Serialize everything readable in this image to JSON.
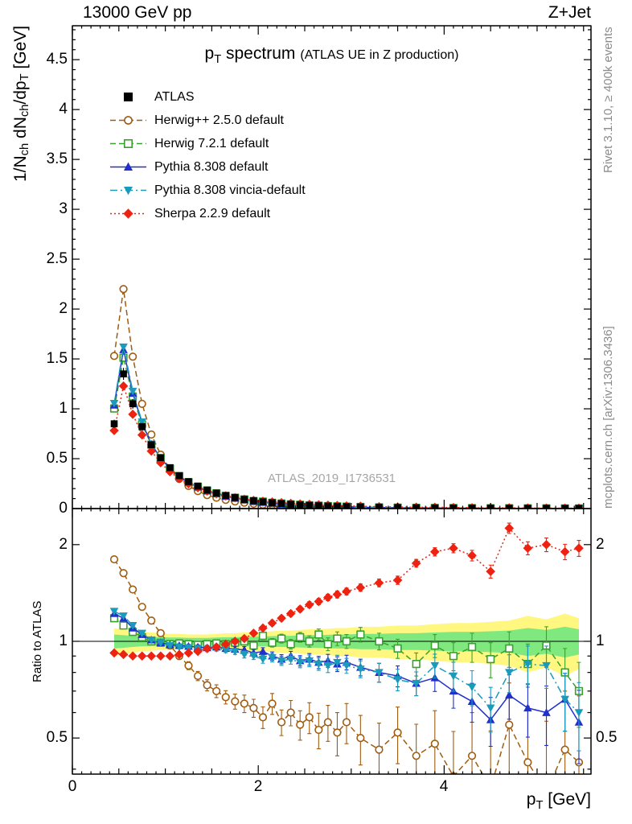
{
  "header": {
    "left": "13000 GeV pp",
    "right": "Z+Jet"
  },
  "title": {
    "main_parts": [
      [
        "t",
        "p"
      ],
      [
        "s",
        "T"
      ],
      [
        "t",
        " spectrum"
      ]
    ],
    "sub": "(ATLAS UE in Z production)"
  },
  "watermark": "ATLAS_2019_I1736531",
  "side_labels": {
    "top_right": "Rivet 3.1.10, ≥ 400k events",
    "bottom_right": "mcplots.cern.ch [arXiv:1306.3436]"
  },
  "axes": {
    "main_y_label_parts": [
      [
        "t",
        "1/N"
      ],
      [
        "s",
        "ch"
      ],
      [
        "t",
        " dN"
      ],
      [
        "s",
        "ch"
      ],
      [
        "t",
        "/dp"
      ],
      [
        "s",
        "T"
      ],
      [
        "t",
        " [GeV]"
      ]
    ],
    "ratio_y_label": "Ratio to ATLAS",
    "x_label_parts": [
      [
        "t",
        "p"
      ],
      [
        "s",
        "T"
      ],
      [
        "t",
        " [GeV]"
      ]
    ],
    "main_y_ticks": [
      0,
      0.5,
      1,
      1.5,
      2,
      2.5,
      3,
      3.5,
      4,
      4.5
    ],
    "ratio_y_ticks": [
      0.5,
      1,
      2
    ],
    "x_ticks": [
      0,
      2,
      4
    ]
  },
  "chart_data": {
    "type": "line",
    "title": "pT spectrum (ATLAS UE in Z production)",
    "xlabel": "pT [GeV]",
    "ylabel": "1/Nch dNch/dpT [GeV]",
    "ratio_label": "Ratio to ATLAS",
    "xlim": [
      0,
      5.58
    ],
    "main_ylim": [
      0,
      4.84
    ],
    "ratio_ylim": [
      0.386,
      2.59
    ],
    "x": [
      0.45,
      0.55,
      0.65,
      0.75,
      0.85,
      0.95,
      1.05,
      1.15,
      1.25,
      1.35,
      1.45,
      1.55,
      1.65,
      1.75,
      1.85,
      1.95,
      2.05,
      2.15,
      2.25,
      2.35,
      2.45,
      2.55,
      2.65,
      2.75,
      2.85,
      2.95,
      3.1,
      3.3,
      3.5,
      3.7,
      3.9,
      4.1,
      4.3,
      4.5,
      4.7,
      4.9,
      5.1,
      5.3,
      5.45
    ],
    "atlas": {
      "name": "ATLAS",
      "color": "#000000",
      "marker": "square-filled",
      "values": [
        0.85,
        1.35,
        1.05,
        0.82,
        0.64,
        0.51,
        0.41,
        0.33,
        0.27,
        0.225,
        0.185,
        0.155,
        0.13,
        0.11,
        0.092,
        0.078,
        0.067,
        0.058,
        0.05,
        0.043,
        0.0375,
        0.0325,
        0.0285,
        0.025,
        0.022,
        0.019,
        0.016,
        0.0125,
        0.0099,
        0.008,
        0.0066,
        0.0054,
        0.0045,
        0.0038,
        0.0032,
        0.0027,
        0.0023,
        0.002,
        0.0018
      ]
    },
    "series": [
      {
        "name": "Herwig++ 2.5.0 default",
        "color": "#a05c10",
        "line": "dash",
        "marker": "circle-open",
        "err_scale": 1.6,
        "ratio": [
          1.8,
          1.63,
          1.45,
          1.28,
          1.16,
          1.06,
          0.97,
          0.9,
          0.84,
          0.78,
          0.73,
          0.7,
          0.67,
          0.65,
          0.64,
          0.62,
          0.58,
          0.64,
          0.56,
          0.6,
          0.55,
          0.58,
          0.53,
          0.56,
          0.52,
          0.56,
          0.5,
          0.46,
          0.52,
          0.44,
          0.48,
          0.38,
          0.44,
          0.35,
          0.55,
          0.42,
          0.34,
          0.46,
          0.42
        ]
      },
      {
        "name": "Herwig 7.2.1 default",
        "color": "#3aa12e",
        "line": "dash",
        "marker": "square-open",
        "err_scale": 1.0,
        "ratio": [
          1.18,
          1.12,
          1.07,
          1.03,
          1.0,
          0.99,
          0.98,
          0.985,
          0.98,
          0.975,
          0.98,
          0.985,
          0.98,
          0.99,
          1.0,
          0.97,
          1.04,
          0.99,
          1.02,
          0.98,
          1.03,
          1.0,
          1.05,
          0.98,
          1.02,
          1.0,
          1.05,
          1.0,
          0.95,
          0.85,
          0.97,
          0.9,
          0.96,
          0.88,
          0.95,
          0.85,
          0.97,
          0.8,
          0.7
        ]
      },
      {
        "name": "Pythia 8.308 default",
        "color": "#2030cc",
        "line": "solid",
        "marker": "triangle-up",
        "err_scale": 0.9,
        "ratio": [
          1.22,
          1.18,
          1.1,
          1.05,
          1.01,
          0.99,
          0.975,
          0.97,
          0.965,
          0.96,
          0.955,
          0.96,
          0.95,
          0.945,
          0.94,
          0.92,
          0.93,
          0.9,
          0.88,
          0.9,
          0.87,
          0.88,
          0.86,
          0.87,
          0.85,
          0.86,
          0.83,
          0.8,
          0.78,
          0.74,
          0.77,
          0.7,
          0.65,
          0.57,
          0.68,
          0.62,
          0.6,
          0.66,
          0.56
        ]
      },
      {
        "name": "Pythia 8.308 vincia-default",
        "color": "#1b9bbb",
        "line": "dashdot",
        "marker": "triangle-down",
        "err_scale": 0.9,
        "ratio": [
          1.24,
          1.2,
          1.12,
          1.06,
          1.01,
          0.99,
          0.97,
          0.96,
          0.955,
          0.95,
          0.945,
          0.95,
          0.94,
          0.93,
          0.91,
          0.9,
          0.88,
          0.89,
          0.87,
          0.88,
          0.86,
          0.87,
          0.85,
          0.84,
          0.86,
          0.84,
          0.82,
          0.8,
          0.76,
          0.74,
          0.84,
          0.78,
          0.72,
          0.62,
          0.8,
          0.85,
          0.84,
          0.66,
          0.6
        ]
      },
      {
        "name": "Sherpa 2.2.9 default",
        "color": "#ee2211",
        "line": "dot",
        "marker": "diamond",
        "err_scale": 0.7,
        "ratio": [
          0.92,
          0.91,
          0.9,
          0.9,
          0.9,
          0.9,
          0.9,
          0.91,
          0.92,
          0.93,
          0.95,
          0.96,
          0.98,
          1.0,
          1.02,
          1.06,
          1.1,
          1.14,
          1.18,
          1.22,
          1.26,
          1.3,
          1.33,
          1.37,
          1.4,
          1.43,
          1.47,
          1.52,
          1.55,
          1.75,
          1.9,
          1.95,
          1.85,
          1.65,
          2.25,
          1.95,
          2.0,
          1.9,
          1.95
        ]
      }
    ],
    "bands": {
      "yellow_color": "#fff780",
      "green_color": "#7fe87f",
      "yellow_half": [
        0.1,
        0.09,
        0.08,
        0.07,
        0.065,
        0.06,
        0.055,
        0.055,
        0.05,
        0.05,
        0.05,
        0.055,
        0.06,
        0.06,
        0.065,
        0.07,
        0.07,
        0.075,
        0.08,
        0.08,
        0.085,
        0.09,
        0.09,
        0.095,
        0.1,
        0.1,
        0.11,
        0.11,
        0.12,
        0.12,
        0.13,
        0.14,
        0.14,
        0.15,
        0.16,
        0.2,
        0.17,
        0.22,
        0.18
      ],
      "green_half": [
        0.05,
        0.045,
        0.04,
        0.035,
        0.033,
        0.03,
        0.028,
        0.028,
        0.025,
        0.025,
        0.025,
        0.028,
        0.03,
        0.03,
        0.033,
        0.035,
        0.035,
        0.038,
        0.04,
        0.04,
        0.043,
        0.045,
        0.045,
        0.048,
        0.05,
        0.05,
        0.055,
        0.055,
        0.06,
        0.06,
        0.065,
        0.07,
        0.07,
        0.075,
        0.08,
        0.1,
        0.085,
        0.11,
        0.09
      ]
    },
    "err_profile": [
      0.01,
      0.01,
      0.01,
      0.01,
      0.01,
      0.012,
      0.012,
      0.014,
      0.015,
      0.016,
      0.018,
      0.02,
      0.02,
      0.022,
      0.025,
      0.025,
      0.028,
      0.03,
      0.032,
      0.034,
      0.036,
      0.04,
      0.042,
      0.045,
      0.05,
      0.05,
      0.055,
      0.06,
      0.065,
      0.07,
      0.08,
      0.09,
      0.1,
      0.11,
      0.12,
      0.13,
      0.14,
      0.15,
      0.16
    ]
  }
}
